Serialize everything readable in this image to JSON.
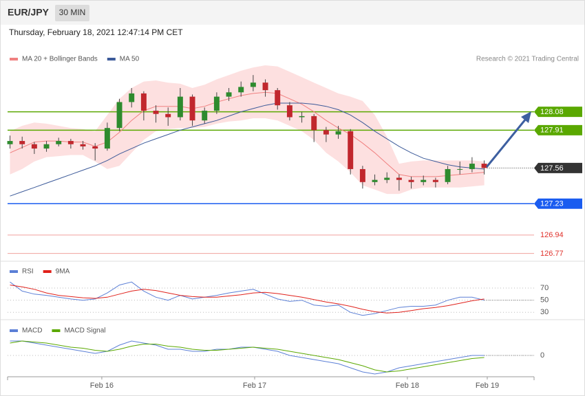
{
  "header": {
    "symbol": "EUR/JPY",
    "timeframe": "30 MIN",
    "timestamp": "Thursday, February 18, 2021 12:47:14 PM CET"
  },
  "chart_data": [
    {
      "type": "candlestick",
      "source": "Research © 2021 Trading Central",
      "xlim": [
        -0.2,
        43.1
      ],
      "ylim": [
        126.71,
        128.51
      ],
      "up_color": "#2e8b2e",
      "down_color": "#c1272d",
      "open": [
        127.78,
        127.81,
        127.78,
        127.74,
        127.78,
        127.81,
        127.78,
        127.76,
        127.74,
        127.93,
        128.17,
        128.25,
        128.09,
        128.06,
        128.03,
        128.22,
        128.0,
        128.09,
        128.22,
        128.26,
        128.31,
        128.35,
        128.28,
        128.14,
        128.03,
        128.04,
        127.91,
        127.87,
        127.9,
        127.55,
        127.43,
        127.45,
        127.47,
        127.45,
        127.43,
        127.45,
        127.43,
        127.55,
        127.55,
        127.6
      ],
      "high": [
        127.86,
        127.85,
        127.8,
        127.81,
        127.84,
        127.83,
        127.81,
        127.79,
        127.98,
        128.2,
        128.3,
        128.27,
        128.14,
        128.12,
        128.3,
        128.24,
        128.12,
        128.26,
        128.3,
        128.36,
        128.42,
        128.38,
        128.3,
        128.17,
        128.08,
        128.06,
        127.94,
        127.95,
        127.92,
        127.58,
        127.5,
        127.52,
        127.5,
        127.48,
        127.49,
        127.47,
        127.58,
        127.62,
        127.66,
        127.63
      ],
      "low": [
        127.74,
        127.74,
        127.69,
        127.71,
        127.76,
        127.74,
        127.73,
        127.63,
        127.72,
        127.9,
        128.12,
        128.0,
        127.98,
        127.95,
        128.0,
        127.95,
        127.97,
        128.06,
        128.18,
        128.22,
        128.27,
        128.22,
        128.1,
        128.0,
        127.98,
        127.8,
        127.8,
        127.83,
        127.5,
        127.37,
        127.4,
        127.42,
        127.35,
        127.37,
        127.4,
        127.38,
        127.41,
        127.5,
        127.52,
        127.5
      ],
      "close": [
        127.81,
        127.78,
        127.74,
        127.78,
        127.81,
        127.78,
        127.76,
        127.74,
        127.93,
        128.17,
        128.25,
        128.09,
        128.06,
        128.03,
        128.22,
        128.0,
        128.09,
        128.22,
        128.26,
        128.31,
        128.35,
        128.28,
        128.14,
        128.03,
        128.04,
        127.91,
        127.87,
        127.9,
        127.55,
        127.43,
        127.45,
        127.47,
        127.45,
        127.43,
        127.45,
        127.43,
        127.55,
        127.55,
        127.6,
        127.56
      ],
      "series": [
        {
          "name": "MA 20 + Bollinger Bands",
          "color": "#f08080",
          "band_color": "#fde0e0",
          "values": [
            127.7,
            127.75,
            127.8,
            127.81,
            127.81,
            127.8,
            127.8,
            127.76,
            127.8,
            127.89,
            128.0,
            128.09,
            128.13,
            128.13,
            128.13,
            128.11,
            128.13,
            128.17,
            128.2,
            128.23,
            128.25,
            128.26,
            128.25,
            128.2,
            128.15,
            128.08,
            128.0,
            127.93,
            127.87,
            127.79,
            127.7,
            127.6,
            127.5,
            127.48,
            127.48,
            127.48,
            127.49,
            127.5,
            127.51,
            127.52
          ],
          "upper": [
            127.9,
            127.95,
            127.98,
            127.97,
            127.95,
            127.93,
            127.92,
            127.9,
            128.05,
            128.2,
            128.3,
            128.36,
            128.37,
            128.35,
            128.34,
            128.3,
            128.33,
            128.38,
            128.42,
            128.46,
            128.49,
            128.51,
            128.5,
            128.45,
            128.4,
            128.35,
            128.3,
            128.25,
            128.22,
            128.18,
            128.05,
            127.85,
            127.6,
            127.62,
            127.63,
            127.63,
            127.63,
            127.63,
            127.63,
            127.62
          ],
          "lower": [
            127.5,
            127.55,
            127.62,
            127.66,
            127.67,
            127.68,
            127.68,
            127.62,
            127.55,
            127.58,
            127.7,
            127.82,
            127.9,
            127.92,
            127.93,
            127.93,
            127.94,
            127.97,
            127.99,
            128.0,
            128.02,
            128.02,
            128.0,
            127.95,
            127.9,
            127.82,
            127.7,
            127.62,
            127.52,
            127.4,
            127.36,
            127.32,
            127.32,
            127.36,
            127.38,
            127.38,
            127.38,
            127.38,
            127.39,
            127.4
          ]
        },
        {
          "name": "MA 50",
          "color": "#3c5a99",
          "values": [
            127.3,
            127.34,
            127.38,
            127.42,
            127.46,
            127.5,
            127.54,
            127.58,
            127.63,
            127.69,
            127.74,
            127.79,
            127.83,
            127.87,
            127.91,
            127.94,
            127.97,
            128.0,
            128.04,
            128.08,
            128.11,
            128.14,
            128.16,
            128.16,
            128.16,
            128.15,
            128.13,
            128.1,
            128.05,
            127.98,
            127.9,
            127.83,
            127.76,
            127.7,
            127.65,
            127.62,
            127.59,
            127.57,
            127.56,
            127.55
          ]
        }
      ],
      "levels": [
        {
          "value": 128.08,
          "color": "#5aa800",
          "boxed": true,
          "dotted": false
        },
        {
          "value": 127.91,
          "color": "#5aa800",
          "boxed": true,
          "dotted": false
        },
        {
          "value": 127.56,
          "color": "#333333",
          "boxed": true,
          "dotted": true
        },
        {
          "value": 127.23,
          "color": "#1a5cf0",
          "boxed": true,
          "dotted": false
        },
        {
          "value": 126.94,
          "color": "#e0302a",
          "boxed": false,
          "dotted": false
        },
        {
          "value": 126.77,
          "color": "#e0302a",
          "boxed": false,
          "dotted": false
        }
      ]
    },
    {
      "type": "line",
      "xlim": [
        -0.2,
        43.1
      ],
      "ylim": [
        19,
        112
      ],
      "yticks": [
        30,
        50,
        70
      ],
      "series": [
        {
          "name": "RSI",
          "color": "#5b7fd6",
          "values": [
            80,
            65,
            60,
            58,
            55,
            52,
            50,
            52,
            62,
            75,
            80,
            65,
            55,
            50,
            58,
            52,
            55,
            58,
            62,
            65,
            68,
            60,
            52,
            48,
            50,
            42,
            40,
            42,
            30,
            25,
            28,
            33,
            38,
            40,
            40,
            42,
            50,
            55,
            55,
            50
          ]
        },
        {
          "name": "9MA",
          "color": "#e0201a",
          "values": [
            75,
            72,
            68,
            62,
            58,
            56,
            54,
            53,
            55,
            60,
            65,
            68,
            66,
            62,
            58,
            56,
            55,
            55,
            57,
            59,
            62,
            63,
            61,
            58,
            55,
            51,
            47,
            44,
            40,
            35,
            31,
            29,
            30,
            33,
            36,
            38,
            41,
            45,
            49,
            52
          ]
        }
      ]
    },
    {
      "type": "line",
      "xlim": [
        -0.2,
        43.1
      ],
      "ylim": [
        -0.1,
        0.13
      ],
      "yticks": [
        0
      ],
      "xticks": [
        {
          "value": 7.55,
          "label": "Feb 16"
        },
        {
          "value": 20.12,
          "label": "Feb 17"
        },
        {
          "value": 32.68,
          "label": "Feb 18"
        },
        {
          "value": 39.25,
          "label": "Feb 19"
        }
      ],
      "series": [
        {
          "name": "MACD",
          "color": "#5b7fd6",
          "values": [
            0.07,
            0.07,
            0.06,
            0.05,
            0.04,
            0.03,
            0.02,
            0.01,
            0.02,
            0.05,
            0.07,
            0.06,
            0.05,
            0.03,
            0.03,
            0.02,
            0.02,
            0.03,
            0.03,
            0.04,
            0.04,
            0.03,
            0.02,
            0.0,
            -0.01,
            -0.02,
            -0.03,
            -0.04,
            -0.06,
            -0.08,
            -0.09,
            -0.08,
            -0.06,
            -0.05,
            -0.04,
            -0.03,
            -0.02,
            -0.01,
            0.0,
            0.0
          ]
        },
        {
          "name": "MACD Signal",
          "color": "#5aa800",
          "values": [
            0.06,
            0.07,
            0.065,
            0.06,
            0.05,
            0.04,
            0.035,
            0.025,
            0.02,
            0.03,
            0.045,
            0.055,
            0.055,
            0.045,
            0.04,
            0.03,
            0.025,
            0.025,
            0.03,
            0.035,
            0.04,
            0.035,
            0.03,
            0.02,
            0.01,
            0.0,
            -0.01,
            -0.02,
            -0.035,
            -0.05,
            -0.07,
            -0.08,
            -0.075,
            -0.065,
            -0.055,
            -0.045,
            -0.035,
            -0.025,
            -0.015,
            -0.01
          ]
        }
      ]
    }
  ]
}
